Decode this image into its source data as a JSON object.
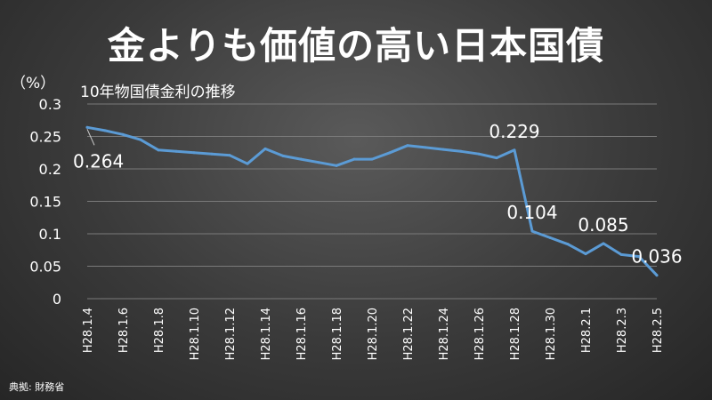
{
  "page": {
    "title": "金よりも価値の高い日本国債",
    "unit_label": "（%）",
    "subtitle": "10年物国債金利の推移",
    "source": "典拠: 財務省"
  },
  "colors": {
    "line": "#5b9bd5",
    "grid": "#7a7a7a",
    "text": "#ffffff"
  },
  "chart_data": {
    "type": "line",
    "title": "10年物国債金利の推移",
    "ylabel": "（%）",
    "xlabel": "",
    "ylim": [
      0,
      0.3
    ],
    "yticks": [
      0,
      0.05,
      0.1,
      0.15,
      0.2,
      0.25,
      0.3
    ],
    "ytick_labels": [
      "0",
      "0.05",
      "0.1",
      "0.15",
      "0.2",
      "0.25",
      "0.3"
    ],
    "grid": true,
    "categories": [
      "H28.1.4",
      "H28.1.5",
      "H28.1.6",
      "H28.1.7",
      "H28.1.8",
      "H28.1.9",
      "H28.1.10",
      "H28.1.11",
      "H28.1.12",
      "H28.1.13",
      "H28.1.14",
      "H28.1.15",
      "H28.1.16",
      "H28.1.17",
      "H28.1.18",
      "H28.1.19",
      "H28.1.20",
      "H28.1.21",
      "H28.1.22",
      "H28.1.23",
      "H28.1.24",
      "H28.1.25",
      "H28.1.26",
      "H28.1.27",
      "H28.1.28",
      "H28.1.29",
      "H28.1.30",
      "H28.1.31",
      "H28.2.1",
      "H28.2.2",
      "H28.2.3",
      "H28.2.4",
      "H28.2.5"
    ],
    "xtick_labels": [
      "H28.1.4",
      "H28.1.6",
      "H28.1.8",
      "H28.1.10",
      "H28.1.12",
      "H28.1.14",
      "H28.1.16",
      "H28.1.18",
      "H28.1.20",
      "H28.1.22",
      "H28.1.24",
      "H28.1.26",
      "H28.1.28",
      "H28.1.30",
      "H28.2.1",
      "H28.2.3",
      "H28.2.5"
    ],
    "series": [
      {
        "values": [
          0.264,
          0.259,
          0.253,
          0.245,
          0.229,
          0.227,
          0.225,
          0.223,
          0.221,
          0.208,
          0.231,
          0.22,
          0.215,
          0.21,
          0.205,
          0.215,
          0.215,
          0.225,
          0.236,
          0.233,
          0.23,
          0.227,
          0.223,
          0.217,
          0.229,
          0.104,
          0.094,
          0.084,
          0.069,
          0.085,
          0.068,
          0.065,
          0.036
        ]
      }
    ],
    "annotations": [
      {
        "category": "H28.1.4",
        "value": 0.264,
        "text": "0.264",
        "placement": "below-right",
        "leader": true
      },
      {
        "category": "H28.1.28",
        "value": 0.229,
        "text": "0.229",
        "placement": "above"
      },
      {
        "category": "H28.1.29",
        "value": 0.104,
        "text": "0.104",
        "placement": "above"
      },
      {
        "category": "H28.2.2",
        "value": 0.085,
        "text": "0.085",
        "placement": "above"
      },
      {
        "category": "H28.2.5",
        "value": 0.036,
        "text": "0.036",
        "placement": "above"
      }
    ]
  }
}
